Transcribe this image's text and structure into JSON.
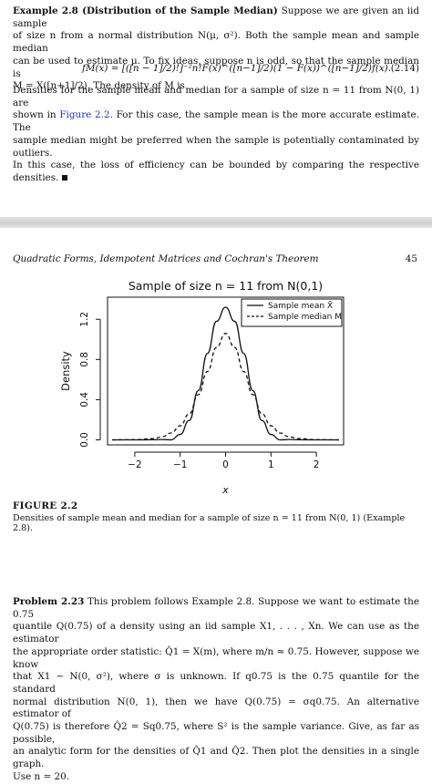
{
  "example": {
    "heading": "Example 2.8 (Distribution of the Sample Median)",
    "line1_rest": " Suppose we are given an iid sample",
    "line2": "of size n from a normal distribution N(μ, σ²). Both the sample mean and sample median",
    "line3": "can be used to estimate μ. To fix ideas, suppose n is odd, so that the sample median is",
    "line4": "M = X([n+1]/2). The density of M is",
    "equation": "fM(x) = [([n − 1]/2)!]⁻²n!F(x)^([n−1]/2)(1 − F(x))^([n−1]/2)f(x).",
    "equation_number": "(2.14)",
    "para2_line1": "Densities for the sample mean and median for a sample of size n = 11 from N(0, 1) are",
    "para2_line2_a": "shown in ",
    "para2_link": "Figure 2.2",
    "para2_line2_b": ". For this case, the sample mean is the more accurate estimate. The",
    "para2_line3": "sample median might be preferred when the sample is potentially contaminated by outliers.",
    "para2_line4": "In this case, the loss of efficiency can be bounded by comparing the respective densities."
  },
  "running_head": "Quadratic Forms, Idempotent Matrices and Cochran's Theorem",
  "page_number": "45",
  "chart_data": {
    "type": "line",
    "title": "Sample of size n = 11 from N(0,1)",
    "xlabel": "x",
    "ylabel": "Density",
    "xlim": [
      -2.6,
      2.6
    ],
    "ylim": [
      -0.05,
      1.42
    ],
    "xticks": [
      "−2",
      "−1",
      "0",
      "1",
      "2"
    ],
    "xtick_values": [
      -2,
      -1,
      0,
      1,
      2
    ],
    "yticks": [
      "0.0",
      "0.4",
      "0.8",
      "1.2"
    ],
    "ytick_values": [
      0,
      0.4,
      0.8,
      1.2
    ],
    "legend_position": "top-right",
    "series": [
      {
        "name": "Sample mean X̄",
        "style": "solid",
        "x": [
          -2.5,
          -2.0,
          -1.6,
          -1.4,
          -1.2,
          -1.0,
          -0.8,
          -0.6,
          -0.4,
          -0.2,
          0.0,
          0.2,
          0.4,
          0.6,
          0.8,
          1.0,
          1.2,
          1.4,
          1.6,
          2.0,
          2.5
        ],
        "y": [
          0.0,
          0.0,
          0.001,
          0.003,
          0.0,
          0.054,
          0.193,
          0.49,
          0.86,
          1.18,
          1.32,
          1.18,
          0.86,
          0.49,
          0.193,
          0.054,
          0.0,
          0.003,
          0.001,
          0.0,
          0.0
        ]
      },
      {
        "name": "Sample median M",
        "style": "dashed",
        "x": [
          -2.5,
          -2.0,
          -1.6,
          -1.4,
          -1.2,
          -1.0,
          -0.8,
          -0.6,
          -0.4,
          -0.2,
          0.0,
          0.2,
          0.4,
          0.6,
          0.8,
          1.0,
          1.2,
          1.4,
          1.6,
          2.0,
          2.5
        ],
        "y": [
          0.0,
          0.002,
          0.012,
          0.03,
          0.068,
          0.14,
          0.26,
          0.45,
          0.68,
          0.92,
          1.06,
          0.92,
          0.68,
          0.45,
          0.26,
          0.14,
          0.068,
          0.03,
          0.012,
          0.002,
          0.0
        ]
      }
    ]
  },
  "figure": {
    "label": "FIGURE 2.2",
    "caption": "Densities of sample mean and median for a sample of size n = 11 from N(0, 1) (Example 2.8)."
  },
  "problem": {
    "heading": "Problem 2.23",
    "line1_rest": " This problem follows Example 2.8. Suppose we want to estimate the 0.75",
    "line2": "quantile Q(0.75) of a density using an iid sample X1, . . . , Xn. We can use as the estimator",
    "line3": "the appropriate order statistic: Q̂1 = X(m), where m/n ≈ 0.75. However, suppose we know",
    "line4": "that X1 ∼ N(0, σ²), where σ is unknown. If q0.75 is the 0.75 quantile for the standard",
    "line5": "normal distribution N(0, 1), then we have Q(0.75) = σq0.75. An alternative estimator of",
    "line6": "Q(0.75) is therefore Q̂2 = Sq0.75, where S² is the sample variance. Give, as far as possible,",
    "line7": "an analytic form for the densities of Q̂1 and Q̂2. Then plot the densities in a single graph.",
    "line8": "Use n = 20."
  }
}
